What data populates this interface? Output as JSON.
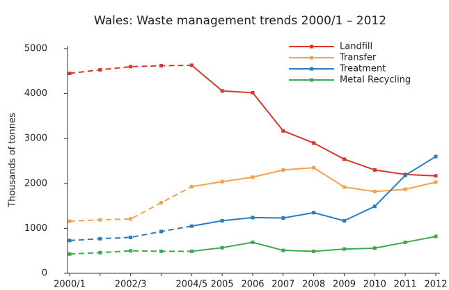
{
  "chart_data": {
    "type": "line",
    "title": "Wales: Waste management trends 2000/1 – 2012",
    "y_label": "Thousands of tonnes",
    "categories": [
      "2000/1",
      null,
      "2002/3",
      null,
      "2004/5",
      "2005",
      "2006",
      "2007",
      "2008",
      "2009",
      "2010",
      "2011",
      "2012"
    ],
    "dashed_through_index": 4,
    "series": [
      {
        "name": "Landfill",
        "color": "#d9362b",
        "values": [
          4450,
          4530,
          4600,
          4620,
          4630,
          4060,
          4020,
          3170,
          2900,
          2540,
          2300,
          2200,
          2170
        ]
      },
      {
        "name": "Transfer",
        "color": "#f5a04a",
        "values": [
          1160,
          1190,
          1210,
          1570,
          1930,
          2040,
          2140,
          2300,
          2350,
          1920,
          1820,
          1870,
          2030
        ]
      },
      {
        "name": "Treatment",
        "color": "#2a7bbf",
        "values": [
          730,
          770,
          800,
          930,
          1050,
          1170,
          1240,
          1230,
          1350,
          1170,
          1490,
          2180,
          2600
        ]
      },
      {
        "name": "Metal Recycling",
        "color": "#3aaa4a",
        "values": [
          430,
          460,
          500,
          490,
          490,
          570,
          690,
          510,
          490,
          540,
          560,
          690,
          820
        ]
      }
    ],
    "ylim": [
      0,
      5000
    ],
    "yticks": [
      0,
      1000,
      2000,
      3000,
      4000,
      5000
    ],
    "legend": "upper-right",
    "grid": false
  }
}
